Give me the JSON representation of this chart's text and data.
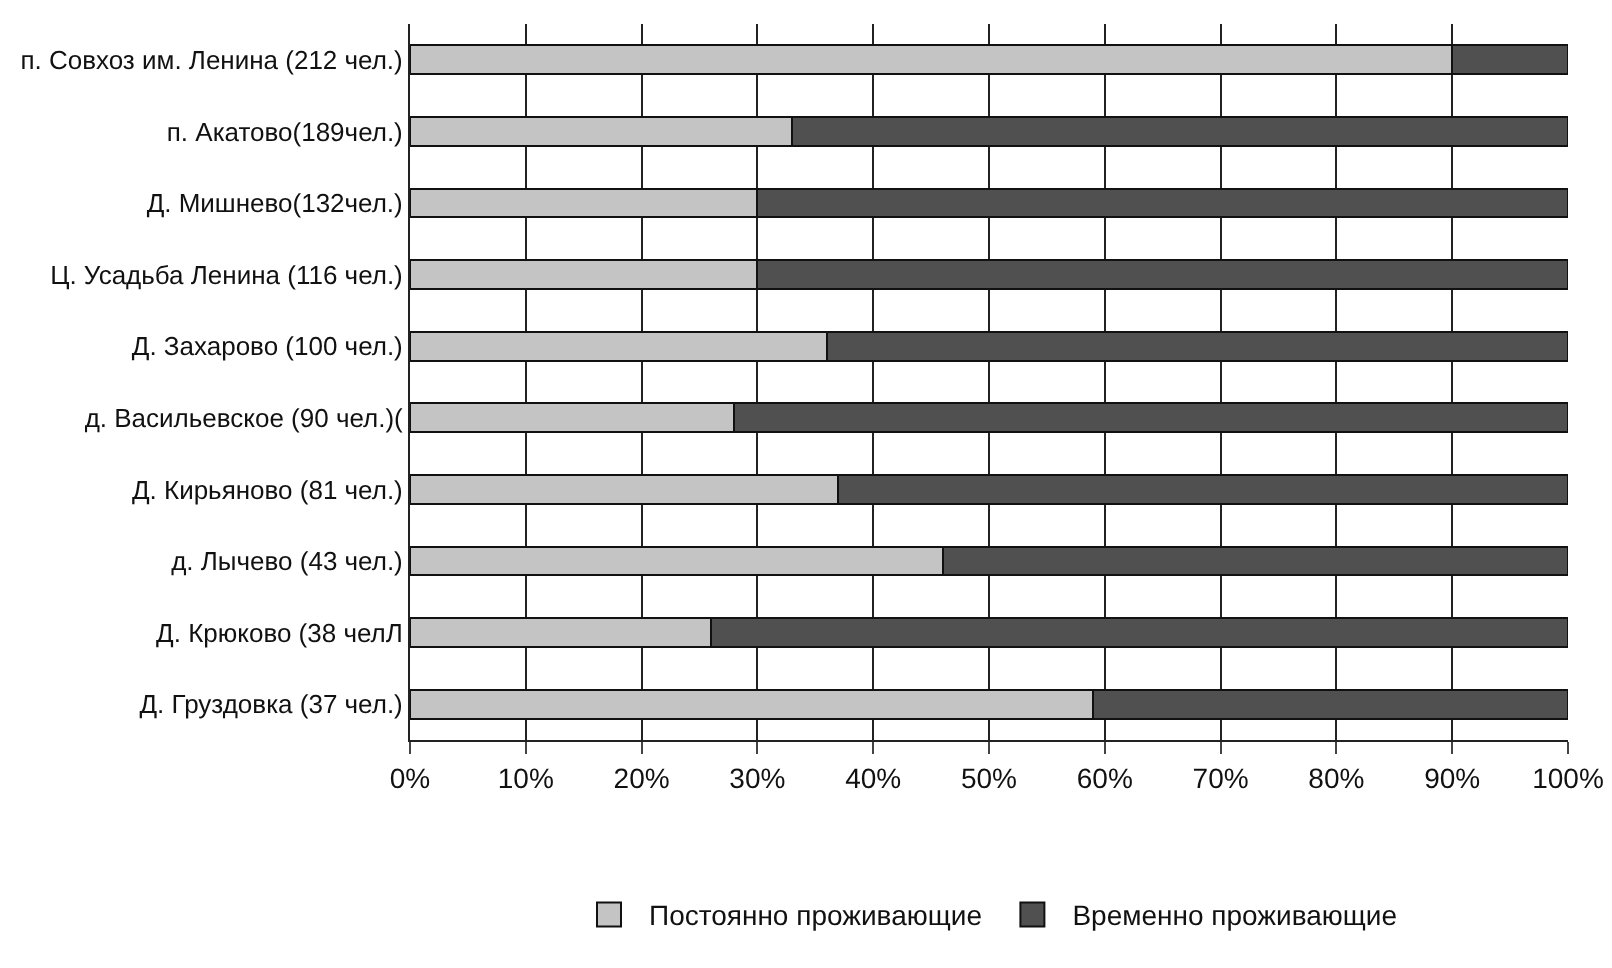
{
  "chart_data": {
    "type": "bar",
    "orientation": "horizontal",
    "stacked": true,
    "categories": [
      "п. Совхоз им. Ленина (212 чел.)",
      "п. Акатово(189чел.)",
      "Д. Мишнево(132чел.)",
      "Ц. Усадьба Ленина (116 чел.)",
      "Д. Захарово (100 чел.)",
      "д. Васильевское (90 чел.)(",
      "Д. Кирьяново (81 чел.)",
      "д. Лычево (43 чел.)",
      "Д. Крюково (38 челЛ",
      "Д. Груздовка (37 чел.)"
    ],
    "series": [
      {
        "name": "Постоянно проживающие",
        "color": "#c4c4c4",
        "values": [
          90,
          33,
          30,
          30,
          36,
          28,
          37,
          46,
          26,
          59
        ]
      },
      {
        "name": "Временно проживающие",
        "color": "#505050",
        "values": [
          10,
          67,
          70,
          70,
          64,
          72,
          63,
          54,
          74,
          41
        ]
      }
    ],
    "xlim": [
      0,
      100
    ],
    "xticks": [
      {
        "value": 0,
        "label": "0%"
      },
      {
        "value": 10,
        "label": "10%"
      },
      {
        "value": 20,
        "label": "20%"
      },
      {
        "value": 30,
        "label": "30%"
      },
      {
        "value": 40,
        "label": "40%"
      },
      {
        "value": 50,
        "label": "50%"
      },
      {
        "value": 60,
        "label": "60%"
      },
      {
        "value": 70,
        "label": "70%"
      },
      {
        "value": 80,
        "label": "80%"
      },
      {
        "value": 90,
        "label": "90%"
      },
      {
        "value": 100,
        "label": "100%"
      }
    ],
    "grid": "x",
    "legend": "bottom"
  }
}
